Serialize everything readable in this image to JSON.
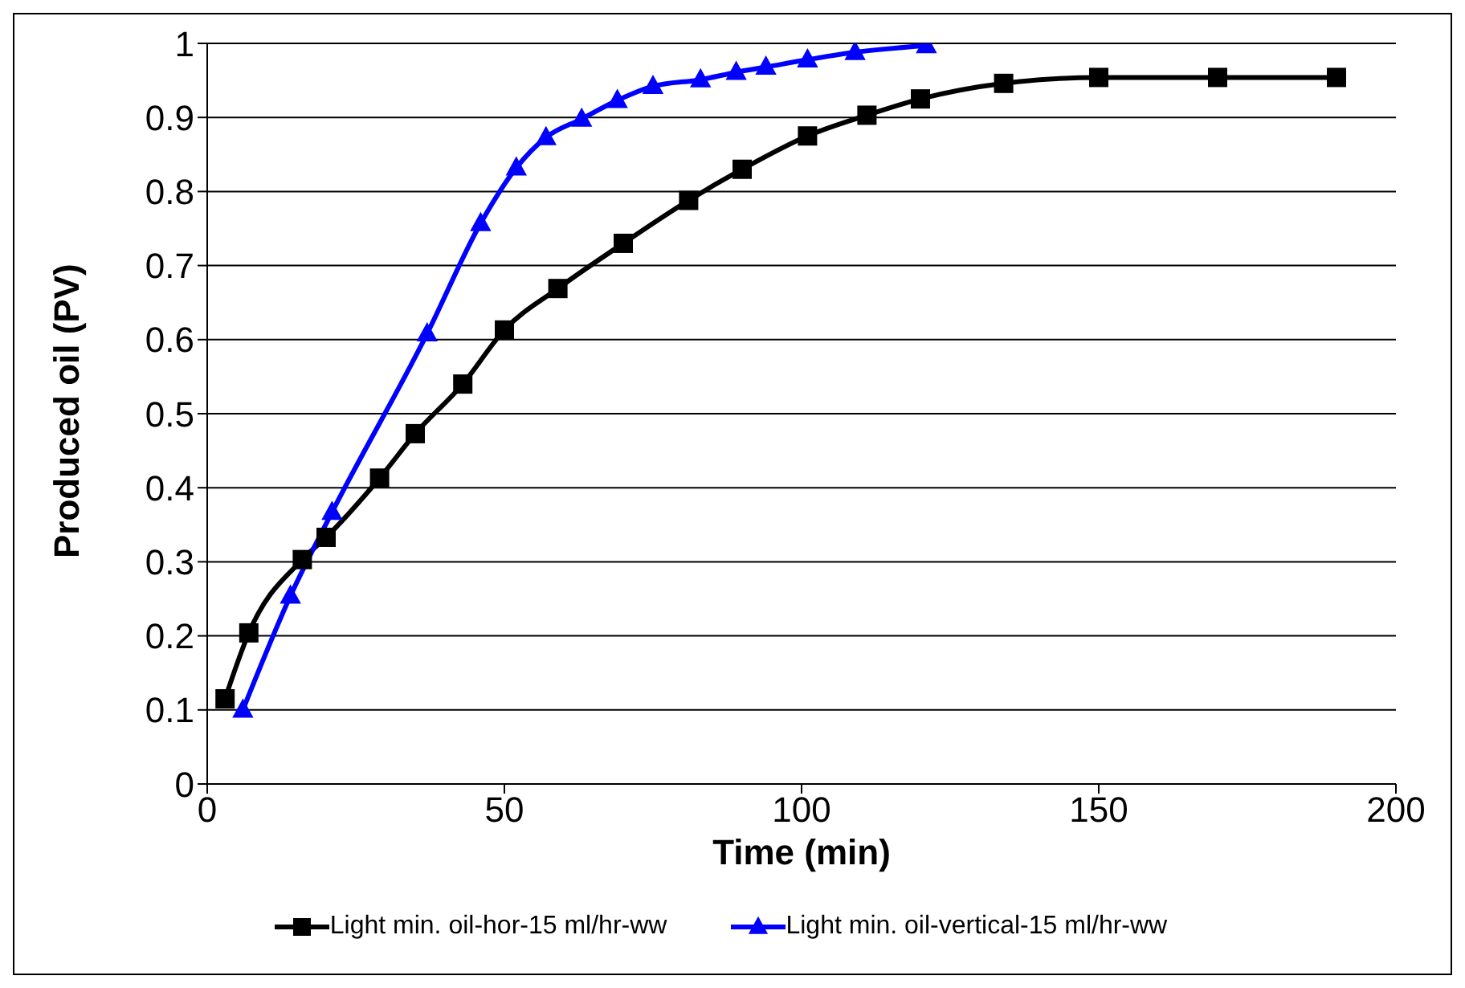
{
  "chart_data": {
    "type": "line",
    "xlabel": "Time (min)",
    "ylabel": "Produced oil (PV)",
    "xlim": [
      0,
      200
    ],
    "xticks": [
      0,
      50,
      100,
      150,
      200
    ],
    "ylim": [
      0,
      1
    ],
    "yticks": [
      0,
      0.1,
      0.2,
      0.3,
      0.4,
      0.5,
      0.6,
      0.7,
      0.8,
      0.9,
      1
    ],
    "grid": "y",
    "legend": "bottom",
    "series": [
      {
        "name": "Light min. oil-hor-15 ml/hr-ww",
        "color": "#000000",
        "marker": "square",
        "x": [
          3,
          7,
          16,
          20,
          29,
          35,
          43,
          50,
          59,
          70,
          81,
          90,
          101,
          111,
          120,
          134,
          150,
          170,
          190
        ],
        "values": [
          0.115,
          0.204,
          0.303,
          0.333,
          0.413,
          0.473,
          0.54,
          0.613,
          0.669,
          0.73,
          0.788,
          0.83,
          0.875,
          0.903,
          0.925,
          0.946,
          0.954,
          0.954,
          0.954
        ]
      },
      {
        "name": "Light min. oil-vertical-15 ml/hr-ww",
        "color": "#0000ff",
        "marker": "triangle",
        "x": [
          6,
          14,
          21,
          37,
          46,
          52,
          57,
          63,
          69,
          75,
          83,
          89,
          94,
          101,
          109,
          121
        ],
        "values": [
          0.1,
          0.254,
          0.367,
          0.608,
          0.757,
          0.832,
          0.873,
          0.898,
          0.923,
          0.942,
          0.951,
          0.961,
          0.968,
          0.978,
          0.988,
          0.997
        ]
      }
    ]
  }
}
